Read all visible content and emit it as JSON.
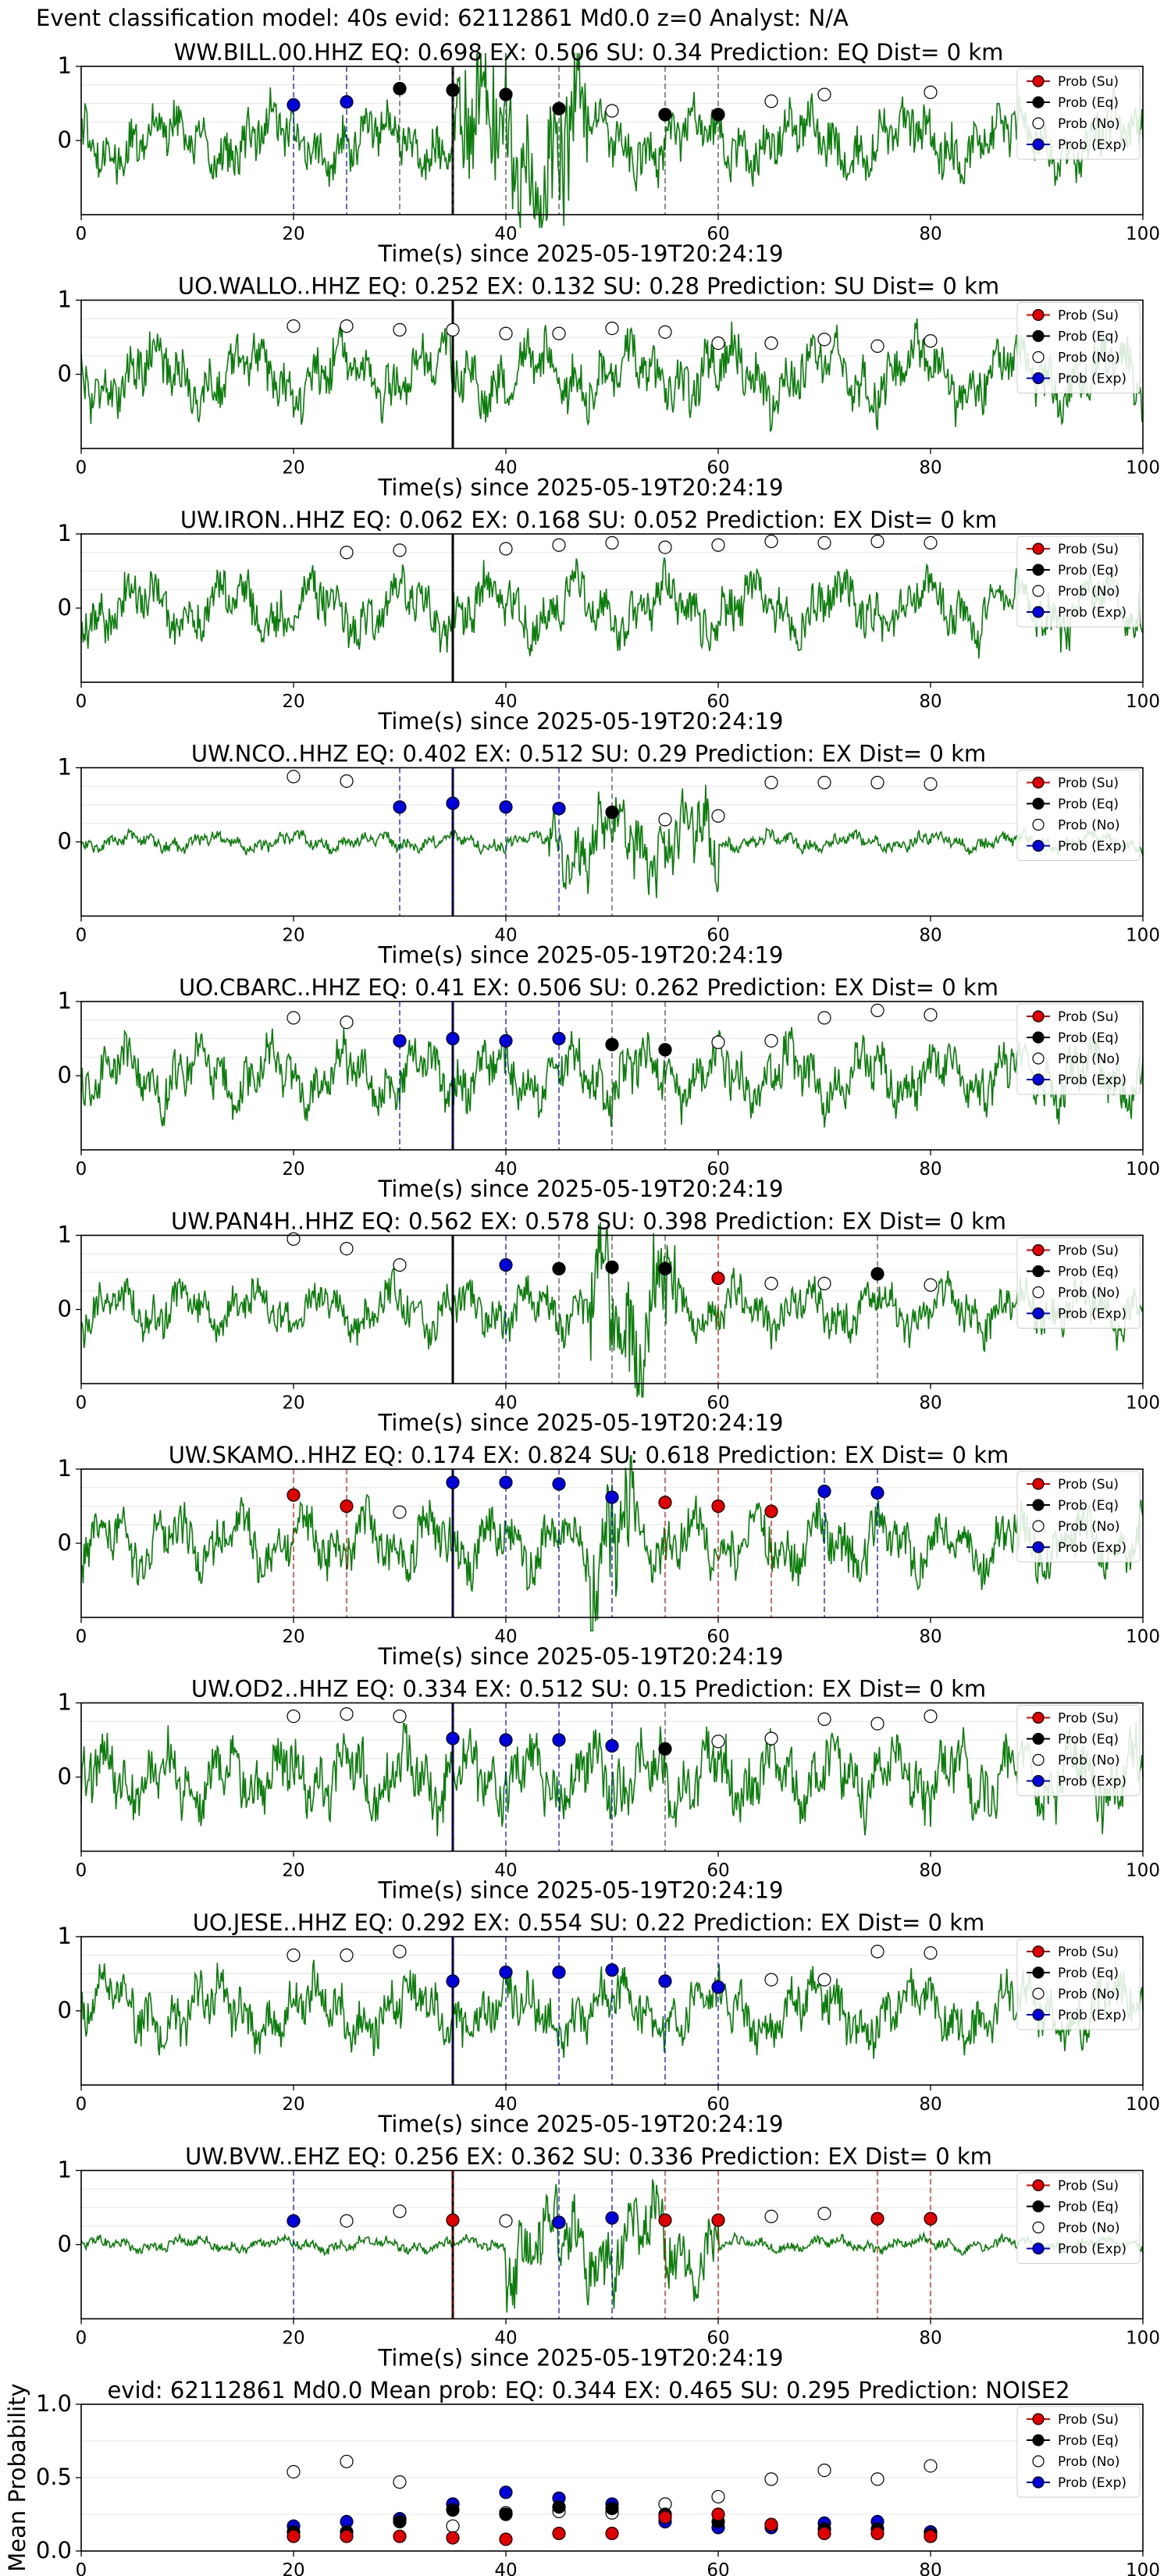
{
  "suptitle": "Event classification model: 40s evid: 62112861 Md0.0 z=0 Analyst: N/A",
  "colors": {
    "eq": "#000000",
    "su": "#e00000",
    "no": "#ffffff",
    "ex": "#0000dd",
    "trace": "#0a7d0a",
    "pick": "#000000"
  },
  "legend": [
    "Prob (Su)",
    "Prob (Eq)",
    "Prob (No)",
    "Prob (Exp)"
  ],
  "chart_data": [
    {
      "type": "line",
      "title": "WW.BILL.00.HHZ   EQ: 0.698  EX: 0.506  SU: 0.34   Prediction: EQ    Dist= 0 km",
      "xlabel": "Time(s) since 2025-05-19T20:24:19",
      "ylabel": "",
      "xlim": [
        0,
        100
      ],
      "ylim": [
        -1,
        1
      ],
      "xticks": [
        0,
        20,
        40,
        60,
        80,
        100
      ],
      "yticks": [
        0,
        1
      ],
      "pick_time": 35,
      "amp": 0.55,
      "burst": [
        35,
        48,
        1.6
      ],
      "legend_position": "top-right",
      "points": [
        {
          "x": 20,
          "cls": "ex",
          "p": 0.48
        },
        {
          "x": 25,
          "cls": "ex",
          "p": 0.52
        },
        {
          "x": 30,
          "cls": "eq",
          "p": 0.7
        },
        {
          "x": 35,
          "cls": "eq",
          "p": 0.68
        },
        {
          "x": 40,
          "cls": "eq",
          "p": 0.62
        },
        {
          "x": 45,
          "cls": "eq",
          "p": 0.43
        },
        {
          "x": 50,
          "cls": "no",
          "p": 0.4
        },
        {
          "x": 55,
          "cls": "eq",
          "p": 0.35
        },
        {
          "x": 60,
          "cls": "eq",
          "p": 0.35
        },
        {
          "x": 65,
          "cls": "no",
          "p": 0.53
        },
        {
          "x": 70,
          "cls": "no",
          "p": 0.62
        },
        {
          "x": 80,
          "cls": "no",
          "p": 0.65
        }
      ]
    },
    {
      "type": "line",
      "title": "UO.WALLO..HHZ   EQ: 0.252  EX: 0.132  SU: 0.28   Prediction: SU    Dist= 0 km",
      "xlabel": "Time(s) since 2025-05-19T20:24:19",
      "ylabel": "",
      "xlim": [
        0,
        100
      ],
      "ylim": [
        -1,
        1
      ],
      "xticks": [
        0,
        20,
        40,
        60,
        80,
        100
      ],
      "yticks": [
        0,
        1
      ],
      "pick_time": 35,
      "amp": 0.6,
      "burst": null,
      "legend_position": "top-right",
      "points": [
        {
          "x": 20,
          "cls": "no",
          "p": 0.65
        },
        {
          "x": 25,
          "cls": "no",
          "p": 0.65
        },
        {
          "x": 30,
          "cls": "no",
          "p": 0.6
        },
        {
          "x": 35,
          "cls": "no",
          "p": 0.6
        },
        {
          "x": 40,
          "cls": "no",
          "p": 0.55
        },
        {
          "x": 45,
          "cls": "no",
          "p": 0.55
        },
        {
          "x": 50,
          "cls": "no",
          "p": 0.62
        },
        {
          "x": 55,
          "cls": "no",
          "p": 0.57
        },
        {
          "x": 60,
          "cls": "no",
          "p": 0.42
        },
        {
          "x": 65,
          "cls": "no",
          "p": 0.42
        },
        {
          "x": 70,
          "cls": "no",
          "p": 0.47
        },
        {
          "x": 75,
          "cls": "no",
          "p": 0.38
        },
        {
          "x": 80,
          "cls": "no",
          "p": 0.45
        }
      ]
    },
    {
      "type": "line",
      "title": "UW.IRON..HHZ   EQ: 0.062  EX: 0.168  SU: 0.052   Prediction: EX    Dist= 0 km",
      "xlabel": "Time(s) since 2025-05-19T20:24:19",
      "ylabel": "",
      "xlim": [
        0,
        100
      ],
      "ylim": [
        -1,
        1
      ],
      "xticks": [
        0,
        20,
        40,
        60,
        80,
        100
      ],
      "yticks": [
        0,
        1
      ],
      "pick_time": 35,
      "amp": 0.55,
      "burst": null,
      "legend_position": "top-right",
      "points": [
        {
          "x": 25,
          "cls": "no",
          "p": 0.75
        },
        {
          "x": 30,
          "cls": "no",
          "p": 0.78
        },
        {
          "x": 40,
          "cls": "no",
          "p": 0.8
        },
        {
          "x": 45,
          "cls": "no",
          "p": 0.85
        },
        {
          "x": 50,
          "cls": "no",
          "p": 0.88
        },
        {
          "x": 55,
          "cls": "no",
          "p": 0.82
        },
        {
          "x": 60,
          "cls": "no",
          "p": 0.85
        },
        {
          "x": 65,
          "cls": "no",
          "p": 0.9
        },
        {
          "x": 70,
          "cls": "no",
          "p": 0.88
        },
        {
          "x": 75,
          "cls": "no",
          "p": 0.9
        },
        {
          "x": 80,
          "cls": "no",
          "p": 0.88
        }
      ]
    },
    {
      "type": "line",
      "title": "UW.NCO..HHZ   EQ: 0.402  EX: 0.512  SU: 0.29   Prediction: EX    Dist= 0 km",
      "xlabel": "Time(s) since 2025-05-19T20:24:19",
      "ylabel": "",
      "xlim": [
        0,
        100
      ],
      "ylim": [
        -1,
        1
      ],
      "xticks": [
        0,
        20,
        40,
        60,
        80,
        100
      ],
      "yticks": [
        0,
        1
      ],
      "pick_time": 35,
      "amp": 0.15,
      "burst": [
        44,
        60,
        0.9
      ],
      "legend_position": "top-right",
      "points": [
        {
          "x": 20,
          "cls": "no",
          "p": 0.88
        },
        {
          "x": 25,
          "cls": "no",
          "p": 0.82
        },
        {
          "x": 30,
          "cls": "ex",
          "p": 0.47
        },
        {
          "x": 35,
          "cls": "ex",
          "p": 0.52
        },
        {
          "x": 40,
          "cls": "ex",
          "p": 0.47
        },
        {
          "x": 45,
          "cls": "ex",
          "p": 0.45
        },
        {
          "x": 50,
          "cls": "eq",
          "p": 0.4
        },
        {
          "x": 55,
          "cls": "no",
          "p": 0.3
        },
        {
          "x": 60,
          "cls": "no",
          "p": 0.35
        },
        {
          "x": 65,
          "cls": "no",
          "p": 0.8
        },
        {
          "x": 70,
          "cls": "no",
          "p": 0.8
        },
        {
          "x": 75,
          "cls": "no",
          "p": 0.8
        },
        {
          "x": 80,
          "cls": "no",
          "p": 0.78
        }
      ]
    },
    {
      "type": "line",
      "title": "UO.CBARC..HHZ   EQ: 0.41  EX: 0.506  SU: 0.262   Prediction: EX    Dist= 0 km",
      "xlabel": "Time(s) since 2025-05-19T20:24:19",
      "ylabel": "",
      "xlim": [
        0,
        100
      ],
      "ylim": [
        -1,
        1
      ],
      "xticks": [
        0,
        20,
        40,
        60,
        80,
        100
      ],
      "yticks": [
        0,
        1
      ],
      "pick_time": 35,
      "amp": 0.55,
      "burst": null,
      "legend_position": "top-right",
      "points": [
        {
          "x": 20,
          "cls": "no",
          "p": 0.78
        },
        {
          "x": 25,
          "cls": "no",
          "p": 0.72
        },
        {
          "x": 30,
          "cls": "ex",
          "p": 0.47
        },
        {
          "x": 35,
          "cls": "ex",
          "p": 0.5
        },
        {
          "x": 40,
          "cls": "ex",
          "p": 0.47
        },
        {
          "x": 45,
          "cls": "ex",
          "p": 0.5
        },
        {
          "x": 50,
          "cls": "eq",
          "p": 0.42
        },
        {
          "x": 55,
          "cls": "eq",
          "p": 0.35
        },
        {
          "x": 60,
          "cls": "no",
          "p": 0.45
        },
        {
          "x": 65,
          "cls": "no",
          "p": 0.47
        },
        {
          "x": 70,
          "cls": "no",
          "p": 0.78
        },
        {
          "x": 75,
          "cls": "no",
          "p": 0.88
        },
        {
          "x": 80,
          "cls": "no",
          "p": 0.82
        }
      ]
    },
    {
      "type": "line",
      "title": "UW.PAN4H..HHZ   EQ: 0.562  EX: 0.578  SU: 0.398   Prediction: EX    Dist= 0 km",
      "xlabel": "Time(s) since 2025-05-19T20:24:19",
      "ylabel": "",
      "xlim": [
        0,
        100
      ],
      "ylim": [
        -1,
        1
      ],
      "xticks": [
        0,
        20,
        40,
        60,
        80,
        100
      ],
      "yticks": [
        0,
        1
      ],
      "pick_time": 35,
      "amp": 0.45,
      "burst": [
        48,
        56,
        1.5
      ],
      "legend_position": "top-right",
      "points": [
        {
          "x": 20,
          "cls": "no",
          "p": 0.95
        },
        {
          "x": 25,
          "cls": "no",
          "p": 0.82
        },
        {
          "x": 30,
          "cls": "no",
          "p": 0.6
        },
        {
          "x": 40,
          "cls": "ex",
          "p": 0.6
        },
        {
          "x": 45,
          "cls": "eq",
          "p": 0.55
        },
        {
          "x": 50,
          "cls": "eq",
          "p": 0.57
        },
        {
          "x": 55,
          "cls": "eq",
          "p": 0.55
        },
        {
          "x": 60,
          "cls": "su",
          "p": 0.42
        },
        {
          "x": 65,
          "cls": "no",
          "p": 0.35
        },
        {
          "x": 70,
          "cls": "no",
          "p": 0.35
        },
        {
          "x": 75,
          "cls": "eq",
          "p": 0.48
        },
        {
          "x": 80,
          "cls": "no",
          "p": 0.33
        }
      ]
    },
    {
      "type": "line",
      "title": "UW.SKAMO..HHZ   EQ: 0.174  EX: 0.824  SU: 0.618   Prediction: EX    Dist= 0 km",
      "xlabel": "Time(s) since 2025-05-19T20:24:19",
      "ylabel": "",
      "xlim": [
        0,
        100
      ],
      "ylim": [
        -1,
        1
      ],
      "xticks": [
        0,
        20,
        40,
        60,
        80,
        100
      ],
      "yticks": [
        0,
        1
      ],
      "pick_time": 35,
      "amp": 0.55,
      "burst": [
        48,
        52,
        1.3
      ],
      "legend_position": "top-right",
      "points": [
        {
          "x": 20,
          "cls": "su",
          "p": 0.65
        },
        {
          "x": 25,
          "cls": "su",
          "p": 0.5
        },
        {
          "x": 30,
          "cls": "no",
          "p": 0.42
        },
        {
          "x": 35,
          "cls": "ex",
          "p": 0.82
        },
        {
          "x": 40,
          "cls": "ex",
          "p": 0.82
        },
        {
          "x": 45,
          "cls": "ex",
          "p": 0.8
        },
        {
          "x": 50,
          "cls": "ex",
          "p": 0.62
        },
        {
          "x": 55,
          "cls": "su",
          "p": 0.55
        },
        {
          "x": 60,
          "cls": "su",
          "p": 0.5
        },
        {
          "x": 65,
          "cls": "su",
          "p": 0.43
        },
        {
          "x": 70,
          "cls": "ex",
          "p": 0.7
        },
        {
          "x": 75,
          "cls": "ex",
          "p": 0.68
        }
      ]
    },
    {
      "type": "line",
      "title": "UW.OD2..HHZ   EQ: 0.334  EX: 0.512  SU: 0.15   Prediction: EX    Dist= 0 km",
      "xlabel": "Time(s) since 2025-05-19T20:24:19",
      "ylabel": "",
      "xlim": [
        0,
        100
      ],
      "ylim": [
        -1,
        1
      ],
      "xticks": [
        0,
        20,
        40,
        60,
        80,
        100
      ],
      "yticks": [
        0,
        1
      ],
      "pick_time": 35,
      "amp": 0.65,
      "burst": null,
      "legend_position": "top-right",
      "points": [
        {
          "x": 20,
          "cls": "no",
          "p": 0.82
        },
        {
          "x": 25,
          "cls": "no",
          "p": 0.85
        },
        {
          "x": 30,
          "cls": "no",
          "p": 0.82
        },
        {
          "x": 35,
          "cls": "ex",
          "p": 0.52
        },
        {
          "x": 40,
          "cls": "ex",
          "p": 0.5
        },
        {
          "x": 45,
          "cls": "ex",
          "p": 0.5
        },
        {
          "x": 50,
          "cls": "ex",
          "p": 0.42
        },
        {
          "x": 55,
          "cls": "eq",
          "p": 0.38
        },
        {
          "x": 60,
          "cls": "no",
          "p": 0.48
        },
        {
          "x": 65,
          "cls": "no",
          "p": 0.52
        },
        {
          "x": 70,
          "cls": "no",
          "p": 0.78
        },
        {
          "x": 75,
          "cls": "no",
          "p": 0.72
        },
        {
          "x": 80,
          "cls": "no",
          "p": 0.82
        }
      ]
    },
    {
      "type": "line",
      "title": "UO.JESE..HHZ   EQ: 0.292  EX: 0.554  SU: 0.22   Prediction: EX    Dist= 0 km",
      "xlabel": "Time(s) since 2025-05-19T20:24:19",
      "ylabel": "",
      "xlim": [
        0,
        100
      ],
      "ylim": [
        -1,
        1
      ],
      "xticks": [
        0,
        20,
        40,
        60,
        80,
        100
      ],
      "yticks": [
        0,
        1
      ],
      "pick_time": 35,
      "amp": 0.55,
      "burst": null,
      "legend_position": "top-right",
      "points": [
        {
          "x": 20,
          "cls": "no",
          "p": 0.75
        },
        {
          "x": 25,
          "cls": "no",
          "p": 0.75
        },
        {
          "x": 30,
          "cls": "no",
          "p": 0.8
        },
        {
          "x": 35,
          "cls": "ex",
          "p": 0.4
        },
        {
          "x": 40,
          "cls": "ex",
          "p": 0.52
        },
        {
          "x": 45,
          "cls": "ex",
          "p": 0.52
        },
        {
          "x": 50,
          "cls": "ex",
          "p": 0.55
        },
        {
          "x": 55,
          "cls": "ex",
          "p": 0.4
        },
        {
          "x": 60,
          "cls": "ex",
          "p": 0.32
        },
        {
          "x": 65,
          "cls": "no",
          "p": 0.42
        },
        {
          "x": 70,
          "cls": "no",
          "p": 0.42
        },
        {
          "x": 75,
          "cls": "no",
          "p": 0.8
        },
        {
          "x": 80,
          "cls": "no",
          "p": 0.78
        }
      ]
    },
    {
      "type": "line",
      "title": "UW.BVW..EHZ   EQ: 0.256  EX: 0.362  SU: 0.336   Prediction: EX    Dist= 0 km",
      "xlabel": "Time(s) since 2025-05-19T20:24:19",
      "ylabel": "",
      "xlim": [
        0,
        100
      ],
      "ylim": [
        -1,
        1
      ],
      "xticks": [
        0,
        20,
        40,
        60,
        80,
        100
      ],
      "yticks": [
        0,
        1
      ],
      "pick_time": 35,
      "amp": 0.12,
      "burst": [
        40,
        60,
        1.1
      ],
      "legend_position": "top-right",
      "points": [
        {
          "x": 20,
          "cls": "ex",
          "p": 0.32
        },
        {
          "x": 25,
          "cls": "no",
          "p": 0.32
        },
        {
          "x": 30,
          "cls": "no",
          "p": 0.45
        },
        {
          "x": 35,
          "cls": "su",
          "p": 0.33
        },
        {
          "x": 40,
          "cls": "no",
          "p": 0.32
        },
        {
          "x": 45,
          "cls": "ex",
          "p": 0.3
        },
        {
          "x": 50,
          "cls": "ex",
          "p": 0.36
        },
        {
          "x": 55,
          "cls": "su",
          "p": 0.33
        },
        {
          "x": 60,
          "cls": "su",
          "p": 0.33
        },
        {
          "x": 65,
          "cls": "no",
          "p": 0.38
        },
        {
          "x": 70,
          "cls": "no",
          "p": 0.42
        },
        {
          "x": 75,
          "cls": "su",
          "p": 0.35
        },
        {
          "x": 80,
          "cls": "su",
          "p": 0.35
        }
      ]
    },
    {
      "type": "scatter",
      "title": "evid: 62112861  Md0.0   Mean prob:   EQ: 0.344  EX: 0.465  SU: 0.295   Prediction: NOISE2",
      "xlabel": "",
      "ylabel": "Mean Probability",
      "xlim": [
        0,
        100
      ],
      "ylim": [
        0,
        1
      ],
      "xticks": [
        0,
        20,
        40,
        60,
        80,
        100
      ],
      "yticks": [
        0.0,
        0.5,
        1.0
      ],
      "yticklabels": [
        "0.0",
        "0.5",
        "1.0"
      ],
      "legend_position": "top-right",
      "x": [
        20,
        25,
        30,
        35,
        40,
        45,
        50,
        55,
        60,
        65,
        70,
        75,
        80
      ],
      "series": [
        {
          "name": "Prob (No)",
          "cls": "no",
          "values": [
            0.54,
            0.61,
            0.47,
            0.17,
            0.26,
            0.27,
            0.26,
            0.32,
            0.37,
            0.49,
            0.55,
            0.49,
            0.58
          ]
        },
        {
          "name": "Prob (Exp)",
          "cls": "ex",
          "values": [
            0.17,
            0.2,
            0.22,
            0.32,
            0.4,
            0.36,
            0.32,
            0.2,
            0.16,
            0.16,
            0.19,
            0.2,
            0.13
          ]
        },
        {
          "name": "Prob (Eq)",
          "cls": "eq",
          "values": [
            0.13,
            0.13,
            0.2,
            0.28,
            0.25,
            0.3,
            0.29,
            0.25,
            0.2,
            0.18,
            0.15,
            0.15,
            0.11
          ]
        },
        {
          "name": "Prob (Su)",
          "cls": "su",
          "values": [
            0.1,
            0.1,
            0.1,
            0.09,
            0.08,
            0.12,
            0.12,
            0.23,
            0.25,
            0.18,
            0.12,
            0.12,
            0.1
          ]
        }
      ]
    }
  ]
}
